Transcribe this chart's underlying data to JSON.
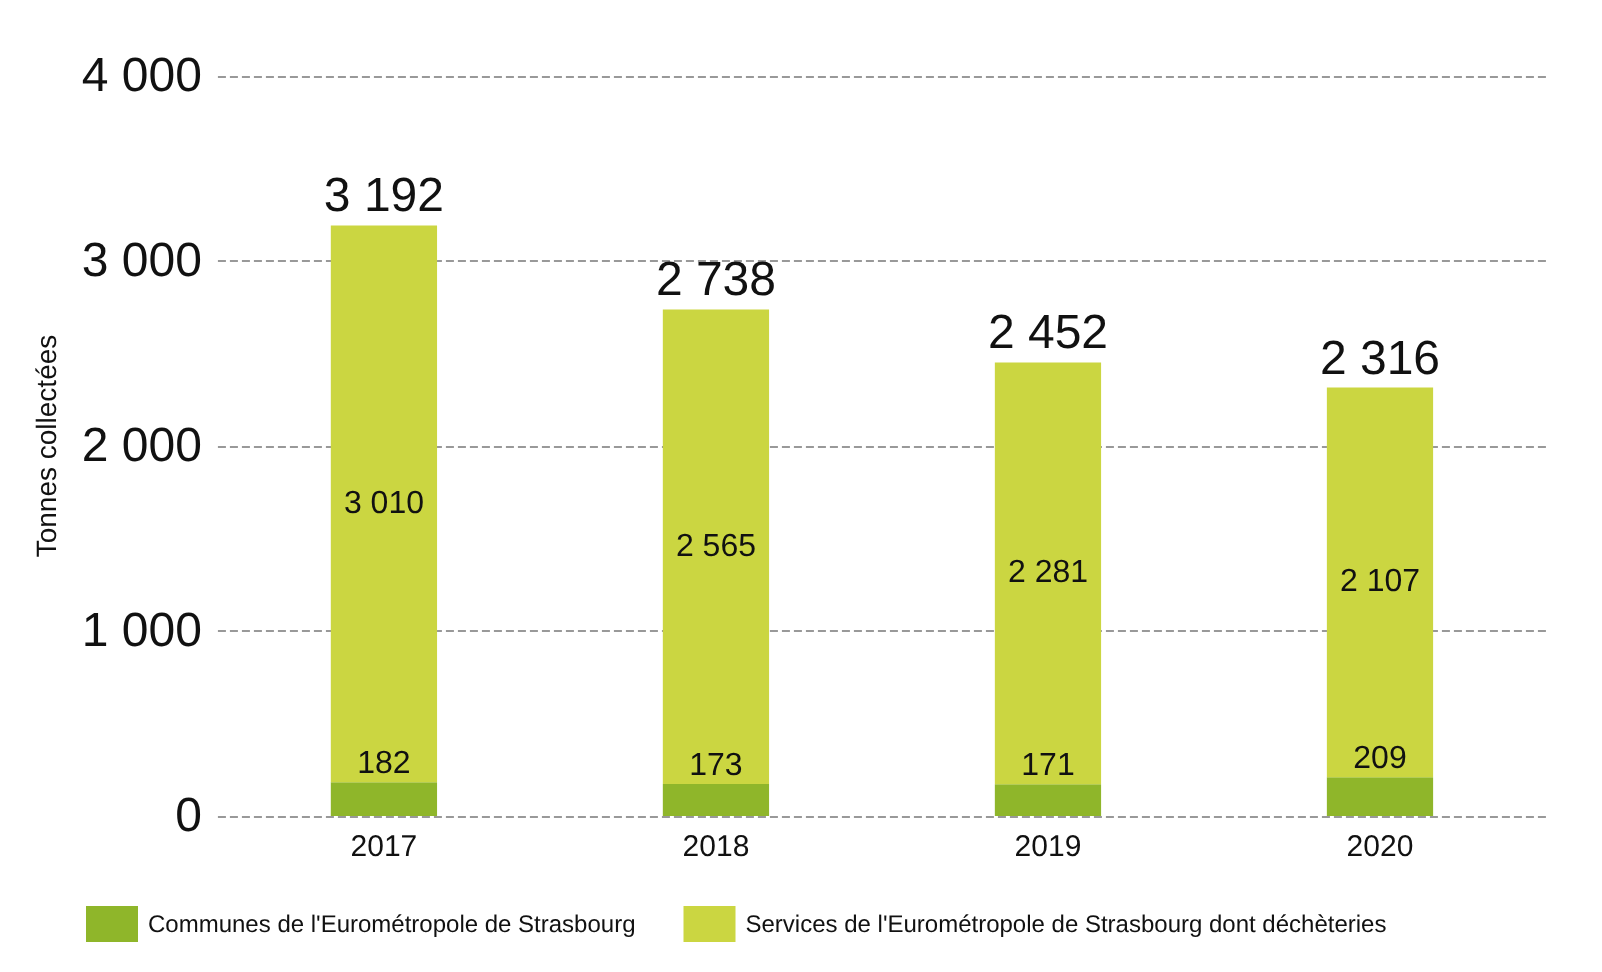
{
  "chart_data": {
    "type": "bar",
    "stacked": true,
    "ylabel": "Tonnes collectées",
    "categories": [
      "2017",
      "2018",
      "2019",
      "2020"
    ],
    "series": [
      {
        "name": "Communes de l'Eurométropole de Strasbourg",
        "color": "#8fb62a",
        "values": [
          182,
          173,
          171,
          209
        ],
        "value_labels": [
          "182",
          "173",
          "171",
          "209"
        ]
      },
      {
        "name": "Services de l'Eurométropole de Strasbourg dont déchèteries",
        "color": "#cbd641",
        "values": [
          3010,
          2565,
          2281,
          2107
        ],
        "value_labels": [
          "3 010",
          "2 565",
          "2 281",
          "2 107"
        ]
      }
    ],
    "totals": [
      "3 192",
      "2 738",
      "2 452",
      "2 316"
    ],
    "ylim": [
      0,
      4000
    ],
    "yticks": [
      {
        "value": 0,
        "label": "0"
      },
      {
        "value": 1000,
        "label": "1 000"
      },
      {
        "value": 2000,
        "label": "2 000"
      },
      {
        "value": 3000,
        "label": "3 000"
      },
      {
        "value": 4000,
        "label": "4 000"
      }
    ],
    "grid": "y",
    "legend": "bottom"
  }
}
